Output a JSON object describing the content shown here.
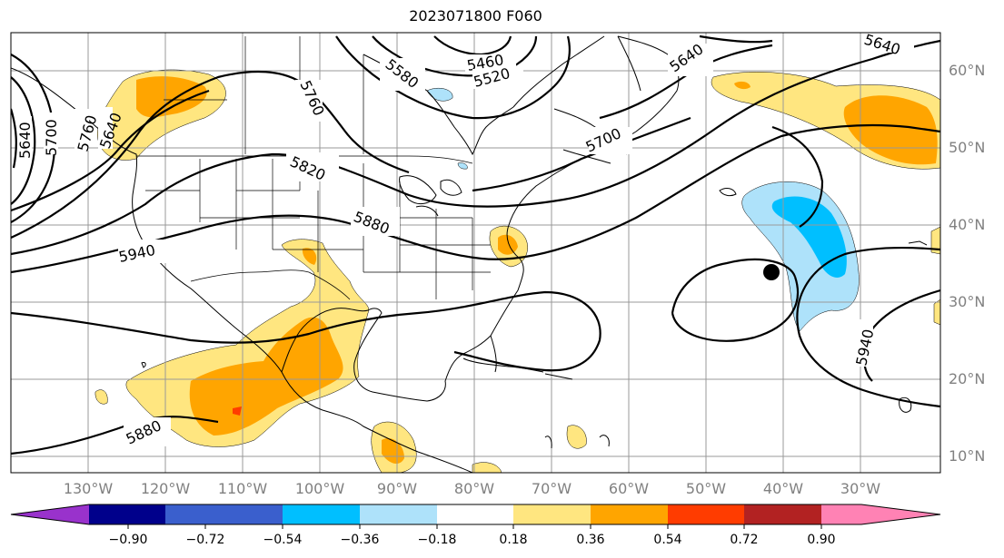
{
  "title": "2023071800 F060",
  "latitude_labels": [
    "60°N",
    "50°N",
    "40°N",
    "30°N",
    "20°N",
    "10°N"
  ],
  "longitude_labels": [
    "130°W",
    "120°W",
    "110°W",
    "100°W",
    "90°W",
    "80°W",
    "70°W",
    "60°W",
    "50°W",
    "40°W",
    "30°W"
  ],
  "contour_labels": [
    "5640",
    "5700",
    "5760",
    "5640",
    "5760",
    "5580",
    "5460",
    "5520",
    "5640",
    "5640",
    "5700",
    "5820",
    "5880",
    "5940",
    "5940",
    "5880"
  ],
  "colorbar": {
    "ticks": [
      "−0.90",
      "−0.72",
      "−0.54",
      "−0.36",
      "−0.18",
      "0.18",
      "0.36",
      "0.54",
      "0.72",
      "0.90"
    ],
    "colors": [
      "#9932cc",
      "#00008b",
      "#3a5fcd",
      "#00bfff",
      "#aee2fa",
      "#ffffff",
      "#ffe680",
      "#ffa500",
      "#ff3c00",
      "#b22222",
      "#ff82b4"
    ]
  },
  "anomaly_colors": {
    "light_yellow": "#ffe680",
    "orange": "#ffa500",
    "red": "#ff3c00",
    "light_blue": "#aee2fa",
    "blue": "#00bfff"
  }
}
